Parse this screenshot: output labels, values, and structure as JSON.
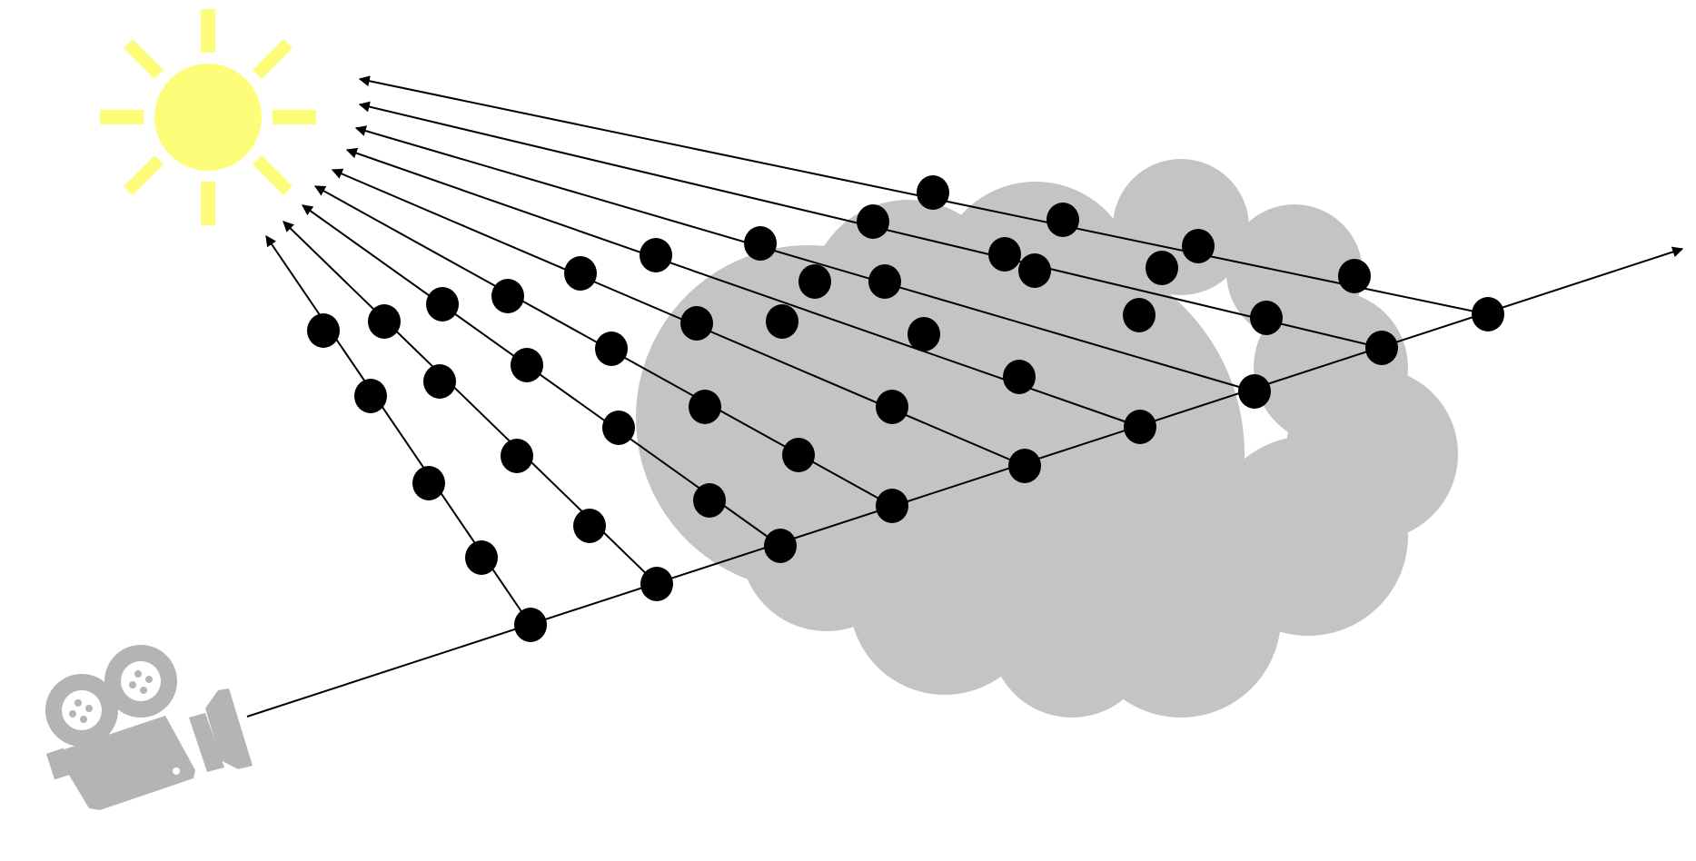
{
  "diagram": {
    "description_free": true,
    "colors": {
      "sun": "#fdfd7a",
      "cloud": "#c4c4c4",
      "camera": "#b4b4b4",
      "ray": "#000000",
      "sample_point": "#000000",
      "background": "#ffffff"
    },
    "icons": {
      "light_source": "sun-icon",
      "volume": "cloud-shape",
      "viewer": "movie-camera-icon"
    },
    "primary_ray": {
      "samples": 9
    },
    "shadow_rays": [
      {
        "samples": 4
      },
      {
        "samples": 4
      },
      {
        "samples": 4
      },
      {
        "samples": 4
      },
      {
        "samples": 4
      },
      {
        "samples": 4
      },
      {
        "samples": 4
      },
      {
        "samples": 4
      },
      {
        "samples": 4
      }
    ]
  }
}
